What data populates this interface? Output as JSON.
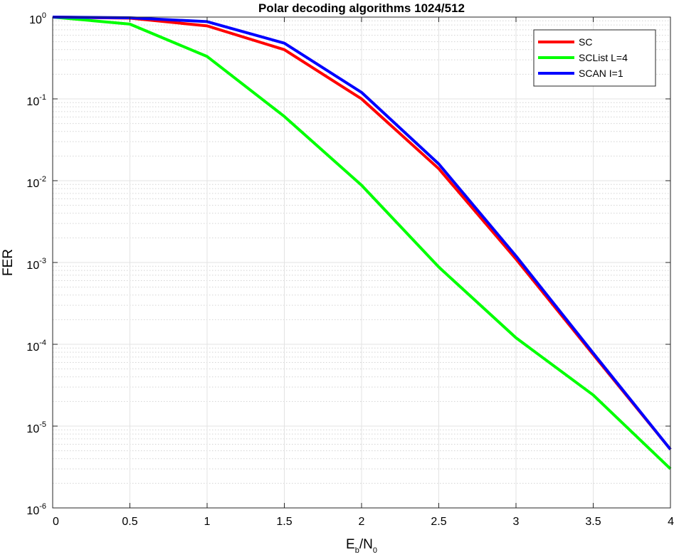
{
  "chart_data": {
    "type": "line",
    "title": "Polar decoding algorithms  1024/512",
    "xlabel": {
      "base": "E",
      "sub1": "b",
      "slash": "/N",
      "sub2": "0"
    },
    "ylabel": "FER",
    "xlim": [
      0,
      4
    ],
    "ylim": [
      1e-06,
      1
    ],
    "yscale": "log",
    "grid": true,
    "minor_grid": true,
    "legend_position": "top-right",
    "x_ticks": [
      0,
      0.5,
      1,
      1.5,
      2,
      2.5,
      3,
      3.5,
      4
    ],
    "x_tick_labels": [
      "0",
      "0.5",
      "1",
      "1.5",
      "2",
      "2.5",
      "3",
      "3.5",
      "4"
    ],
    "y_ticks": [
      {
        "value": 1,
        "base": "10",
        "exp": "0"
      },
      {
        "value": 0.1,
        "base": "10",
        "exp": "-1"
      },
      {
        "value": 0.01,
        "base": "10",
        "exp": "-2"
      },
      {
        "value": 0.001,
        "base": "10",
        "exp": "-3"
      },
      {
        "value": 0.0001,
        "base": "10",
        "exp": "-4"
      },
      {
        "value": 1e-05,
        "base": "10",
        "exp": "-5"
      },
      {
        "value": 1e-06,
        "base": "10",
        "exp": "-6"
      }
    ],
    "x": [
      0,
      0.5,
      1,
      1.5,
      2,
      2.5,
      3,
      3.5,
      4
    ],
    "series": [
      {
        "name": "SC",
        "color": "#ff0000",
        "values": [
          1.0,
          0.97,
          0.78,
          0.4,
          0.1,
          0.014,
          0.0011,
          7.5e-05,
          5.2e-06
        ]
      },
      {
        "name": "SCList L=4",
        "color": "#00ff00",
        "values": [
          1.0,
          0.82,
          0.33,
          0.061,
          0.0088,
          0.00088,
          0.00012,
          2.4e-05,
          3e-06
        ]
      },
      {
        "name": "SCAN I=1",
        "color": "#0000ff",
        "values": [
          1.0,
          0.98,
          0.88,
          0.48,
          0.12,
          0.016,
          0.0012,
          7.8e-05,
          5.2e-06
        ]
      }
    ]
  }
}
